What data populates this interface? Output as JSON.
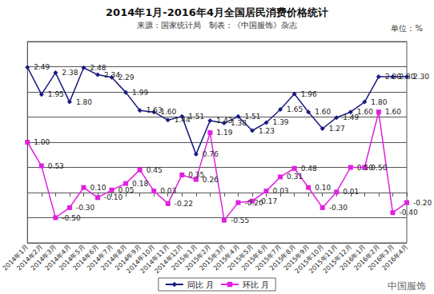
{
  "chart_data": {
    "type": "line",
    "title": "2014年1月-2016年4月全国居民消费价格统计",
    "subtitle": "来源：国家统计局　制表：《中国服饰》杂志",
    "annotations": [
      "单位：%",
      "中国服饰"
    ],
    "categories": [
      "2014年1月",
      "2014年2月",
      "2014年3月",
      "2014年4月",
      "2014年5月",
      "2014年6月",
      "2014年7月",
      "2014年8月",
      "2014年9月",
      "2014年10月",
      "2014年11月",
      "2014年12月",
      "2015年1月",
      "2015年2月",
      "2015年3月",
      "2015年4月",
      "2015年5月",
      "2015年6月",
      "2015年7月",
      "2015年8月",
      "2015年9月",
      "2015年10月",
      "2015年11月",
      "2015年12月",
      "2016年1月",
      "2016年2月",
      "2016年3月",
      "2016年4月"
    ],
    "series": [
      {
        "name": "同比 月",
        "color": "#1a1a80",
        "marker": "diamond",
        "values": [
          2.49,
          1.95,
          2.38,
          1.8,
          2.48,
          2.34,
          2.29,
          1.99,
          1.63,
          1.6,
          1.44,
          1.51,
          0.76,
          1.43,
          1.38,
          1.51,
          1.23,
          1.39,
          1.65,
          1.96,
          1.6,
          1.27,
          1.49,
          1.6,
          1.8,
          2.3,
          2.3,
          2.3
        ],
        "value_labels": [
          "2.49",
          "1.95",
          "2.38",
          "1.80",
          "2.48",
          "2.34",
          "2.29",
          "1.99",
          "1.63",
          "1.60",
          "1.44",
          "1.51",
          "0.76",
          "1.43",
          "1.38",
          "1.51",
          "1.23",
          "1.39",
          "1.65",
          "1.96",
          "1.60",
          "1.27",
          "1.49",
          "1.60",
          "1.80",
          "2.30",
          "2.30",
          "2.30"
        ]
      },
      {
        "name": "环比 月",
        "color": "#e020e0",
        "marker": "square",
        "values": [
          1.0,
          0.53,
          -0.5,
          -0.3,
          0.1,
          -0.1,
          0.05,
          0.18,
          0.45,
          0.03,
          -0.22,
          0.35,
          0.26,
          1.19,
          -0.55,
          -0.2,
          -0.17,
          0.03,
          0.31,
          0.48,
          0.1,
          -0.3,
          0.01,
          0.5,
          0.5,
          1.6,
          -0.4,
          -0.2
        ],
        "value_labels": [
          "1.00",
          "0.53",
          "-0.50",
          "-0.30",
          "0.10",
          "-0.10",
          "0.05",
          "0.18",
          "0.45",
          "0.03",
          "-0.22",
          "0.35",
          "0.26",
          "1.19",
          "-0.55",
          "-0.20",
          "-0.17",
          "0.03",
          "0.31",
          "0.48",
          "0.10",
          "-0.30",
          "0.01",
          "0.50",
          "0.50",
          "1.60",
          "-0.40",
          "-0.20"
        ]
      }
    ],
    "ylim": [
      -1,
      3
    ],
    "yticks": [
      -1,
      -0.5,
      0,
      0.5,
      1,
      1.5,
      2,
      2.5,
      3
    ],
    "grid": true,
    "legend": "bottom",
    "data_labels": true,
    "tick_labels": "x"
  }
}
